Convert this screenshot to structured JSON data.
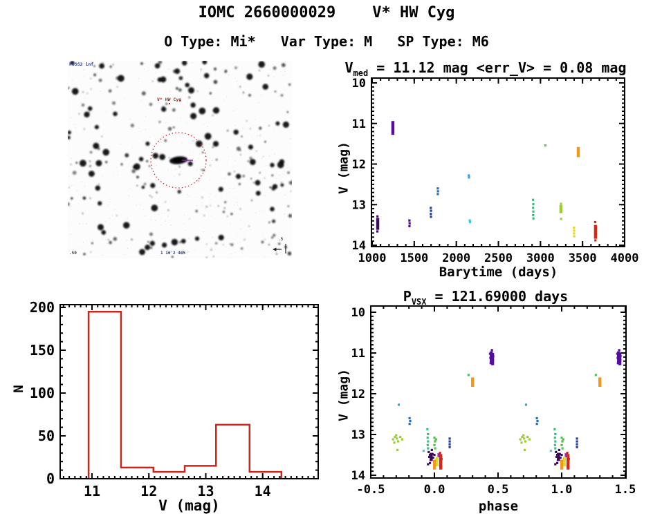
{
  "header": {
    "title": "IOMC 2660000029    V* HW Cyg",
    "subtitle": "O Type: Mi*   Var Type: M   SP Type: M6"
  },
  "finder": {
    "survey_label": "POSS2 inf",
    "target_label": "V* HW Cyg",
    "size_label": "1 16'2 405",
    "corner_label": ".50",
    "compass_label": ".5",
    "colors": {
      "aperture_circle": "#C62828",
      "target_text": "#B22222",
      "blue_text": "#283593",
      "marker": "#8E24AA",
      "star": "#0B0B10"
    }
  },
  "chart_data": [
    {
      "id": "lightcurve",
      "type": "scatter",
      "title": {
        "pre": "V",
        "sub": "med",
        "post": " = 11.12 mag <err_V> = 0.08 mag"
      },
      "xlabel": "Barytime (days)",
      "ylabel": "V (mag)",
      "xlim": [
        1000,
        4000
      ],
      "ylim": [
        10,
        14
      ],
      "y_inverted": true,
      "xticks": [
        1000,
        1500,
        2000,
        2500,
        3000,
        3500,
        4000
      ],
      "xtick_labels": [
        "1000",
        "1500",
        "2000",
        "2500",
        "3000",
        "3500",
        "4000"
      ],
      "yticks": [
        10,
        11,
        12,
        13,
        14
      ],
      "ytick_labels": [
        "10",
        "11",
        "12",
        "13",
        "14"
      ],
      "xminor": 100,
      "yminor": 0.1,
      "groups": [
        {
          "color": "#3D0A5C",
          "bars": [
            [
              1066,
              13.33,
              13.62
            ]
          ],
          "pts": [
            [
              1062,
              13.66
            ],
            [
              1069,
              13.45
            ],
            [
              1063,
              13.29
            ]
          ]
        },
        {
          "color": "#560DA0",
          "bars": [
            [
              1246,
              10.94,
              11.28
            ]
          ],
          "pts": []
        },
        {
          "color": "#4A1080",
          "bars": [],
          "pts": [
            [
              1443,
              13.39
            ],
            [
              1445,
              13.46
            ],
            [
              1443,
              13.53
            ]
          ]
        },
        {
          "color": "#24409A",
          "bars": [],
          "pts": [
            [
              1697,
              13.08
            ],
            [
              1699,
              13.15
            ],
            [
              1697,
              13.23
            ],
            [
              1699,
              13.3
            ]
          ]
        },
        {
          "color": "#2E6DB4",
          "bars": [],
          "pts": [
            [
              1780,
              12.6
            ],
            [
              1782,
              12.67
            ],
            [
              1780,
              12.74
            ]
          ]
        },
        {
          "color": "#3FA0D8",
          "bars": [],
          "pts": [
            [
              2148,
              12.28
            ],
            [
              2150,
              12.33
            ]
          ]
        },
        {
          "color": "#40C8E0",
          "bars": [],
          "pts": [
            [
              2160,
              13.39
            ],
            [
              2163,
              13.43
            ]
          ]
        },
        {
          "color": "#2EC47E",
          "bars": [],
          "pts": [
            [
              2912,
              12.88
            ],
            [
              2915,
              12.99
            ],
            [
              2913,
              13.08
            ],
            [
              2915,
              13.17
            ],
            [
              2913,
              13.26
            ],
            [
              2916,
              13.34
            ]
          ]
        },
        {
          "color": "#4CC44C",
          "bars": [],
          "pts": [
            [
              3058,
              11.54
            ]
          ]
        },
        {
          "color": "#9CCE30",
          "bars": [
            [
              3243,
              13.01,
              13.21
            ]
          ],
          "pts": [
            [
              3247,
              13.06
            ],
            [
              3240,
              13.16
            ],
            [
              3244,
              12.98
            ],
            [
              3245,
              13.35
            ]
          ]
        },
        {
          "color": "#E4D62A",
          "bars": [],
          "pts": [
            [
              3398,
              13.57
            ],
            [
              3400,
              13.64
            ],
            [
              3399,
              13.71
            ],
            [
              3401,
              13.78
            ]
          ]
        },
        {
          "color": "#EE9A1C",
          "bars": [
            [
              3449,
              11.58,
              11.83
            ]
          ],
          "pts": []
        },
        {
          "color": "#D42716",
          "bars": [
            [
              3654,
              13.5,
              13.84
            ]
          ],
          "pts": [
            [
              3650,
              13.43
            ],
            [
              3659,
              13.58
            ],
            [
              3653,
              13.88
            ],
            [
              3659,
              13.72
            ]
          ]
        }
      ]
    },
    {
      "id": "histogram",
      "type": "histogram",
      "xlabel": "V (mag)",
      "ylabel": "N",
      "color": "#CC2418",
      "bin_edges": [
        10.94,
        11.51,
        12.08,
        12.63,
        13.18,
        13.77,
        14.33
      ],
      "counts": [
        195,
        13,
        8,
        15,
        63,
        8
      ],
      "xlim": [
        10.5,
        14.9
      ],
      "ylim": [
        0,
        200
      ],
      "xticks": [
        11,
        12,
        13,
        14
      ],
      "xtick_labels": [
        "11",
        "12",
        "13",
        "14"
      ],
      "yticks": [
        0,
        50,
        100,
        150,
        200
      ],
      "ytick_labels": [
        "0",
        "50",
        "100",
        "150",
        "200"
      ],
      "xminor": 0.1,
      "yminor": 10
    },
    {
      "id": "phase",
      "type": "scatter",
      "repeat_offset": 1,
      "title": {
        "pre": "P",
        "sub": "VSX",
        "post": " = 121.69000 days"
      },
      "xlabel": "phase",
      "ylabel": "V (mag)",
      "xlim": [
        -0.5,
        1.5
      ],
      "ylim": [
        10,
        14
      ],
      "y_inverted": true,
      "xticks": [
        -0.5,
        0.0,
        0.5,
        1.0,
        1.5
      ],
      "xtick_labels": [
        "-0.5",
        "0.0",
        "0.5",
        "1.0",
        "1.5"
      ],
      "yticks": [
        10,
        11,
        12,
        13,
        14
      ],
      "ytick_labels": [
        "10",
        "11",
        "12",
        "13",
        "14"
      ],
      "xminor": 0.1,
      "yminor": 0.1,
      "groups": [
        {
          "color": "#3FA0D8",
          "bars": [],
          "pts": [
            [
              -0.28,
              12.27
            ]
          ]
        },
        {
          "color": "#2E6DB4",
          "bars": [],
          "pts": [
            [
              -0.195,
              12.6
            ],
            [
              -0.19,
              12.67
            ],
            [
              -0.195,
              12.74
            ]
          ]
        },
        {
          "color": "#9CCE30",
          "bars": [],
          "pts": [
            [
              -0.325,
              13.12
            ],
            [
              -0.315,
              13.2
            ],
            [
              -0.3,
              13.02
            ],
            [
              -0.295,
              13.1
            ],
            [
              -0.285,
              13.17
            ],
            [
              -0.268,
              13.06
            ],
            [
              -0.253,
              13.12
            ],
            [
              -0.29,
              13.38
            ],
            [
              -0.31,
              13.06
            ]
          ]
        },
        {
          "color": "#2EC47E",
          "bars": [],
          "pts": [
            [
              -0.055,
              12.87
            ],
            [
              -0.05,
              12.99
            ],
            [
              -0.053,
              13.08
            ],
            [
              -0.05,
              13.17
            ],
            [
              -0.052,
              13.26
            ],
            [
              -0.05,
              13.34
            ]
          ]
        },
        {
          "color": "#4CC44C",
          "bars": [],
          "pts": [
            [
              0.0,
              13.08
            ],
            [
              0.005,
              13.17
            ],
            [
              0.0,
              13.26
            ],
            [
              0.006,
              13.34
            ],
            [
              0.012,
              13.12
            ]
          ]
        },
        {
          "color": "#24409A",
          "bars": [],
          "pts": [
            [
              0.12,
              13.1
            ],
            [
              0.12,
              13.17
            ],
            [
              0.12,
              13.24
            ],
            [
              0.12,
              13.31
            ]
          ]
        },
        {
          "color": "#40C8E0",
          "bars": [],
          "pts": [
            [
              -0.085,
              13.4
            ]
          ]
        },
        {
          "color": "#3D0A5C",
          "bars": [
            [
              -0.025,
              13.45,
              13.65
            ]
          ],
          "pts": [
            [
              -0.045,
              13.43
            ],
            [
              -0.04,
              13.55
            ],
            [
              -0.035,
              13.5
            ],
            [
              -0.03,
              13.62
            ],
            [
              -0.015,
              13.48
            ],
            [
              -0.01,
              13.57
            ],
            [
              -0.035,
              13.7
            ],
            [
              -0.05,
              13.73
            ],
            [
              0.0,
              13.5
            ],
            [
              -0.02,
              13.38
            ]
          ]
        },
        {
          "color": "#9C27B0",
          "bars": [
            [
              0.036,
              13.46,
              13.56
            ]
          ],
          "pts": []
        },
        {
          "color": "#D42716",
          "bars": [
            [
              0.05,
              13.48,
              13.86
            ]
          ],
          "pts": [
            [
              0.044,
              13.45
            ],
            [
              0.056,
              13.6
            ],
            [
              0.046,
              13.78
            ]
          ]
        },
        {
          "color": "#E4D62A",
          "bars": [
            [
              0.02,
              13.55,
              13.78
            ]
          ],
          "pts": []
        },
        {
          "color": "#EE9A1C",
          "bars": [
            [
              0.001,
              13.62,
              13.86
            ]
          ],
          "pts": []
        },
        {
          "color": "#4CC44C",
          "bars": [],
          "pts": [
            [
              0.268,
              11.54
            ]
          ]
        },
        {
          "color": "#EE9A1C",
          "bars": [
            [
              0.3,
              11.6,
              11.83
            ]
          ],
          "pts": []
        },
        {
          "color": "#560DA0",
          "bars": [
            [
              0.447,
              10.96,
              11.26
            ],
            [
              0.457,
              11.0,
              11.3
            ]
          ],
          "pts": [
            [
              0.437,
              11.02
            ],
            [
              0.44,
              11.12
            ],
            [
              0.452,
              10.93
            ],
            [
              0.462,
              11.08
            ],
            [
              0.442,
              11.25
            ],
            [
              0.46,
              11.18
            ]
          ]
        }
      ]
    }
  ]
}
